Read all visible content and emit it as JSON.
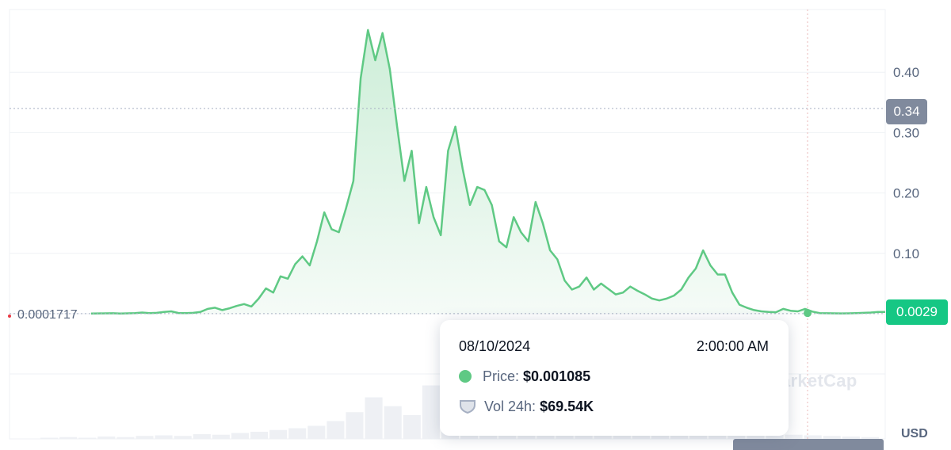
{
  "chart_data": {
    "type": "area",
    "x_range": [
      "",
      "08/10/2024"
    ],
    "ylim": [
      0,
      0.47
    ],
    "y_ticks": [
      "0.10",
      "0.20",
      "0.30",
      "0.40"
    ],
    "y_tick_values": [
      0.1,
      0.2,
      0.3,
      0.4
    ],
    "series": [
      {
        "values": [
          0.0002,
          0.0005,
          0.0006,
          0.0008,
          0.0004,
          0.0006,
          0.001,
          0.002,
          0.001,
          0.0015,
          0.003,
          0.004,
          0.0012,
          0.001,
          0.0015,
          0.003,
          0.008,
          0.01,
          0.006,
          0.009,
          0.013,
          0.016,
          0.012,
          0.025,
          0.042,
          0.035,
          0.062,
          0.058,
          0.082,
          0.095,
          0.08,
          0.12,
          0.168,
          0.14,
          0.135,
          0.175,
          0.22,
          0.39,
          0.47,
          0.42,
          0.465,
          0.405,
          0.31,
          0.22,
          0.27,
          0.15,
          0.21,
          0.16,
          0.13,
          0.27,
          0.31,
          0.24,
          0.18,
          0.21,
          0.205,
          0.18,
          0.12,
          0.11,
          0.16,
          0.135,
          0.12,
          0.185,
          0.15,
          0.105,
          0.09,
          0.055,
          0.04,
          0.045,
          0.06,
          0.04,
          0.05,
          0.041,
          0.032,
          0.035,
          0.045,
          0.038,
          0.032,
          0.025,
          0.022,
          0.025,
          0.03,
          0.04,
          0.06,
          0.075,
          0.105,
          0.08,
          0.065,
          0.065,
          0.035,
          0.015,
          0.01,
          0.006,
          0.004,
          0.003,
          0.0025,
          0.008,
          0.005,
          0.004,
          0.008,
          0.0035,
          0.001,
          0.0008,
          0.0006,
          0.0005,
          0.0006,
          0.001,
          0.0015,
          0.002,
          0.0029,
          0.0029
        ]
      }
    ],
    "volume_bars": [
      0.02,
      0.03,
      0.02,
      0.04,
      0.03,
      0.05,
      0.06,
      0.05,
      0.08,
      0.07,
      0.1,
      0.12,
      0.15,
      0.18,
      0.22,
      0.3,
      0.45,
      0.7,
      0.55,
      0.4,
      0.9,
      1.0,
      0.65,
      0.85,
      0.55,
      0.6,
      0.45,
      0.35,
      0.4,
      0.3,
      0.25,
      0.2,
      0.22,
      0.18,
      0.15,
      0.12,
      0.1,
      0.08,
      0.09,
      0.07,
      0.06,
      0.05,
      0.04,
      0.03
    ],
    "crosshair_value": "0.34",
    "last_value": "0.0029",
    "min_label": "0.0001717",
    "currency": "USD",
    "grid": true,
    "colors": {
      "line": "#5fc984",
      "area_top": "#cdeed8",
      "area_bottom": "#f5fbf7",
      "grid": "#eff2f5",
      "volume": "#eef0f4",
      "min_marker": "#ea3943",
      "tag_crosshair": "#808a9d",
      "tag_last": "#16c784"
    }
  },
  "watermark": "arketCap",
  "tooltip": {
    "date": "08/10/2024",
    "time": "2:00:00 AM",
    "price_label": "Price:",
    "price_value": "$0.001085",
    "vol_label": "Vol 24h:",
    "vol_value": "$69.54K"
  }
}
